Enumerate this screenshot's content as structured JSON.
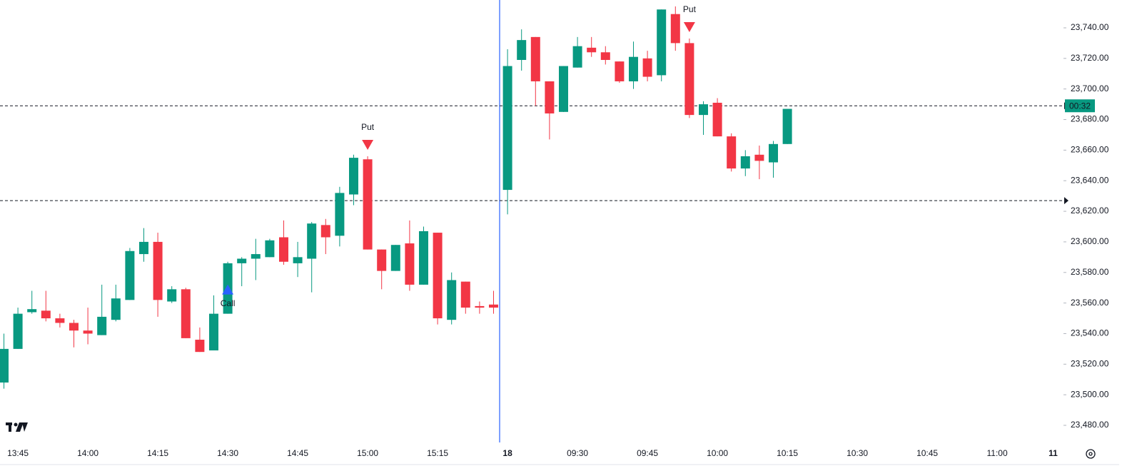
{
  "chart_data": {
    "type": "candlestick",
    "categories": [
      null,
      "13:45",
      null,
      null,
      null,
      null,
      "14:00",
      null,
      null,
      null,
      null,
      "14:15",
      null,
      null,
      null,
      null,
      "14:30",
      null,
      null,
      null,
      null,
      "14:45",
      null,
      null,
      null,
      null,
      "15:00",
      null,
      null,
      null,
      null,
      "15:15",
      null,
      null,
      null,
      null,
      "18",
      null,
      null,
      null,
      null,
      "09:30",
      null,
      null,
      null,
      null,
      "09:45",
      null,
      null,
      null,
      null,
      "10:00",
      null,
      null,
      null,
      null,
      "10:15",
      null,
      null,
      null,
      null,
      "10:30",
      null,
      null,
      null,
      null,
      "10:45",
      null,
      null,
      null,
      null,
      "11:00",
      null,
      null,
      null,
      "11"
    ],
    "open": [
      23508,
      23530,
      23554,
      23555,
      23550,
      23547,
      23542,
      23539,
      23549,
      23562,
      23592,
      23600,
      23561,
      23569,
      23536,
      23529,
      23553,
      23586,
      23589,
      23590,
      23603,
      23586,
      23589,
      23611,
      23604,
      23631,
      23654,
      23595,
      23581,
      23599,
      23572,
      23606,
      23549,
      23574,
      23558,
      23559,
      23634,
      23719,
      23734,
      23705,
      23685,
      23714,
      23727,
      23724,
      23718,
      23705,
      23720,
      23709,
      23749,
      23730,
      23683,
      23691,
      23669,
      23648,
      23657,
      23652,
      23664,
      null,
      null,
      null,
      null,
      null,
      null,
      null,
      null,
      null,
      null,
      null,
      null,
      null,
      null,
      null,
      null,
      null,
      null,
      null
    ],
    "high": [
      23540,
      23557,
      23568,
      23568,
      23553,
      23549,
      23557,
      23572,
      23572,
      23596,
      23609,
      23606,
      23571,
      23570,
      23544,
      23565,
      23587,
      23590,
      23602,
      23602,
      23614,
      23600,
      23613,
      23615,
      23636,
      23657,
      23656,
      23595,
      23598,
      23614,
      23610,
      23606,
      23580,
      23574,
      23561,
      23568,
      23726,
      23739,
      23734,
      23705,
      23715,
      23734,
      23734,
      23728,
      23718,
      23731,
      23725,
      23752,
      23754,
      23733,
      23692,
      23694,
      23671,
      23660,
      23663,
      23666,
      23687,
      null,
      null,
      null,
      null,
      null,
      null,
      null,
      null,
      null,
      null,
      null,
      null,
      null,
      null,
      null,
      null,
      null,
      null,
      null
    ],
    "low": [
      23504,
      23530,
      23553,
      23548,
      23544,
      23531,
      23533,
      23539,
      23548,
      23562,
      23587,
      23551,
      23560,
      23537,
      23528,
      23529,
      23553,
      23571,
      23575,
      23590,
      23585,
      23577,
      23567,
      23592,
      23597,
      23624,
      23595,
      23569,
      23581,
      23568,
      23572,
      23546,
      23546,
      23553,
      23553,
      23553,
      23618,
      23712,
      23689,
      23667,
      23685,
      23714,
      23721,
      23716,
      23704,
      23700,
      23705,
      23705,
      23725,
      23681,
      23670,
      23669,
      23646,
      23643,
      23641,
      23642,
      23664,
      null,
      null,
      null,
      null,
      null,
      null,
      null,
      null,
      null,
      null,
      null,
      null,
      null,
      null,
      null,
      null,
      null,
      null,
      null
    ],
    "close": [
      23530,
      23553,
      23556,
      23550,
      23547,
      23542,
      23540,
      23551,
      23563,
      23594,
      23600,
      23562,
      23569,
      23537,
      23528,
      23553,
      23586,
      23589,
      23592,
      23601,
      23587,
      23590,
      23612,
      23603,
      23632,
      23655,
      23595,
      23581,
      23598,
      23572,
      23607,
      23550,
      23575,
      23557,
      23557,
      23557,
      23715,
      23732,
      23705,
      23684,
      23715,
      23728,
      23724,
      23719,
      23705,
      23721,
      23708,
      23752,
      23730,
      23683,
      23690,
      23669,
      23648,
      23656,
      23653,
      23664,
      23687,
      null,
      null,
      null,
      null,
      null,
      null,
      null,
      null,
      null,
      null,
      null,
      null,
      null,
      null,
      null,
      null,
      null,
      null,
      null
    ],
    "up_color": "#089981",
    "down_color": "#f23645",
    "ylim": [
      23468.8,
      23758.2
    ],
    "yticks": [
      {
        "value": 23480,
        "label": "23,480.00"
      },
      {
        "value": 23500,
        "label": "23,500.00"
      },
      {
        "value": 23520,
        "label": "23,520.00"
      },
      {
        "value": 23540,
        "label": "23,540.00"
      },
      {
        "value": 23560,
        "label": "23,560.00"
      },
      {
        "value": 23580,
        "label": "23,580.00"
      },
      {
        "value": 23600,
        "label": "23,600.00"
      },
      {
        "value": 23620,
        "label": "23,620.00"
      },
      {
        "value": 23640,
        "label": "23,640.00"
      },
      {
        "value": 23660,
        "label": "23,660.00"
      },
      {
        "value": 23680,
        "label": "23,680.00"
      },
      {
        "value": 23700,
        "label": "23,700.00"
      },
      {
        "value": 23720,
        "label": "23,720.00"
      },
      {
        "value": 23740,
        "label": "23,740.00"
      }
    ],
    "price_lines": [
      23689,
      23627
    ],
    "countdown": "00:32",
    "signals": [
      {
        "at": 16,
        "label": "Call",
        "side": "below",
        "color": "#2962ff"
      },
      {
        "at": 26,
        "label": "Put",
        "side": "above",
        "color": "#f23645"
      },
      {
        "at": 49,
        "label": "Put",
        "side": "above",
        "color": "#f23645"
      }
    ]
  }
}
